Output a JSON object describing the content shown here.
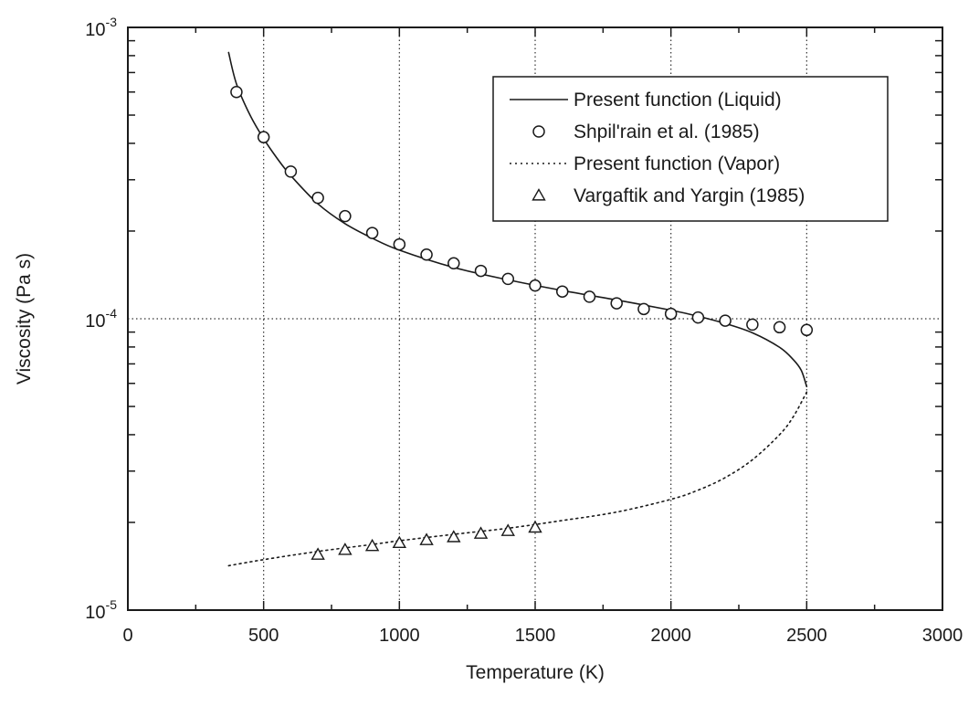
{
  "chart_data": {
    "type": "scatter",
    "xlabel": "Temperature (K)",
    "ylabel": "Viscosity (Pa s)",
    "xlim": [
      0,
      3000
    ],
    "ylim": [
      1e-05,
      0.001
    ],
    "yscale": "log",
    "grid": true,
    "legend_position": "top-right",
    "x_ticks": [
      "0",
      "500",
      "1000",
      "1500",
      "2000",
      "2500",
      "3000"
    ],
    "x_tick_values": [
      0,
      500,
      1000,
      1500,
      2000,
      2500,
      3000
    ],
    "y_ticks": [
      {
        "base": "10",
        "exp": "-5",
        "value": 1e-05
      },
      {
        "base": "10",
        "exp": "-4",
        "value": 0.0001
      },
      {
        "base": "10",
        "exp": "-3",
        "value": 0.001
      }
    ],
    "series": [
      {
        "name": "Present function (Liquid)",
        "style": "solid-line",
        "x": [
          371,
          400,
          450,
          500,
          550,
          600,
          700,
          800,
          900,
          1000,
          1200,
          1400,
          1600,
          1800,
          2000,
          2100,
          2200,
          2300,
          2400,
          2450,
          2480,
          2500
        ],
        "y": [
          0.00082,
          0.00064,
          0.0005,
          0.000415,
          0.000355,
          0.00031,
          0.000248,
          0.000212,
          0.000189,
          0.000172,
          0.00015,
          0.000136,
          0.000125,
          0.000116,
          0.000107,
          0.000102,
          9.63e-05,
          8.95e-05,
          7.98e-05,
          7.25e-05,
          6.65e-05,
          5.85e-05
        ]
      },
      {
        "name": "Shpil'rain et al. (1985)",
        "style": "circle-markers",
        "x": [
          400,
          500,
          600,
          700,
          800,
          900,
          1000,
          1100,
          1200,
          1300,
          1400,
          1500,
          1600,
          1700,
          1800,
          1900,
          2000,
          2100,
          2200,
          2300,
          2400,
          2500
        ],
        "y": [
          0.0006,
          0.00042,
          0.00032,
          0.00026,
          0.000225,
          0.000197,
          0.00018,
          0.000166,
          0.000155,
          0.000146,
          0.000137,
          0.00013,
          0.000124,
          0.000119,
          0.000113,
          0.000108,
          0.000104,
          0.000101,
          9.85e-05,
          9.55e-05,
          9.35e-05,
          9.15e-05
        ]
      },
      {
        "name": "Present function (Vapor)",
        "style": "dotted-line",
        "x": [
          371,
          500,
          700,
          900,
          1000,
          1200,
          1400,
          1600,
          1800,
          2000,
          2100,
          2200,
          2300,
          2400,
          2450,
          2500
        ],
        "y": [
          1.42e-05,
          1.49e-05,
          1.59e-05,
          1.68e-05,
          1.73e-05,
          1.82e-05,
          1.91e-05,
          2.03e-05,
          2.17e-05,
          2.4e-05,
          2.58e-05,
          2.85e-05,
          3.28e-05,
          4e-05,
          4.6e-05,
          5.6e-05
        ]
      },
      {
        "name": "Vargaftik and Yargin (1985)",
        "style": "triangle-markers",
        "x": [
          700,
          800,
          900,
          1000,
          1100,
          1200,
          1300,
          1400,
          1500
        ],
        "y": [
          1.55e-05,
          1.61e-05,
          1.66e-05,
          1.7e-05,
          1.74e-05,
          1.78e-05,
          1.83e-05,
          1.87e-05,
          1.92e-05
        ]
      }
    ]
  }
}
